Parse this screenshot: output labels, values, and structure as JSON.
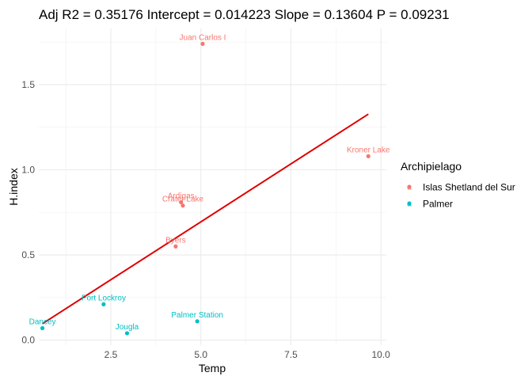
{
  "chart_data": {
    "type": "scatter",
    "title": "Adj R2 =  0.35176 Intercept = 0.014223  Slope = 0.13604  P = 0.09231",
    "xlabel": "Temp",
    "ylabel": "H.index",
    "xlim": [
      0.5,
      10.15
    ],
    "ylim": [
      -0.03,
      1.83
    ],
    "x_ticks": [
      2.5,
      5.0,
      7.5,
      10.0
    ],
    "x_tick_labels": [
      "2.5",
      "5.0",
      "7.5",
      "10.0"
    ],
    "y_ticks": [
      0.0,
      0.5,
      1.0,
      1.5
    ],
    "y_tick_labels": [
      "0.0",
      "0.5",
      "1.0",
      "1.5"
    ],
    "grid": true,
    "legend": {
      "title": "Archipielago",
      "placement": "right",
      "entries": [
        {
          "name": "Islas Shetland del Sur",
          "color": "#F8766D"
        },
        {
          "name": "Palmer",
          "color": "#00BFC4"
        }
      ]
    },
    "series": [
      {
        "name": "Islas Shetland del Sur",
        "color": "#F8766D",
        "points": [
          {
            "label": "Juan Carlos I",
            "x": 5.05,
            "y": 1.74
          },
          {
            "label": "Kroner Lake",
            "x": 9.65,
            "y": 1.08
          },
          {
            "label": "Ardigas",
            "x": 4.45,
            "y": 0.81
          },
          {
            "label": "Crater Lake",
            "x": 4.5,
            "y": 0.79
          },
          {
            "label": "Byers",
            "x": 4.3,
            "y": 0.55
          }
        ]
      },
      {
        "name": "Palmer",
        "color": "#00BFC4",
        "points": [
          {
            "label": "Port Lockroy",
            "x": 2.3,
            "y": 0.21
          },
          {
            "label": "Palmer Station",
            "x": 4.9,
            "y": 0.11
          },
          {
            "label": "Dancey",
            "x": 0.6,
            "y": 0.07
          },
          {
            "label": "Jougla",
            "x": 2.95,
            "y": 0.04
          }
        ]
      }
    ],
    "fit_line": {
      "color": "#E00000",
      "x_range": [
        0.6,
        9.65
      ],
      "intercept": 0.014223,
      "slope": 0.13604
    }
  }
}
